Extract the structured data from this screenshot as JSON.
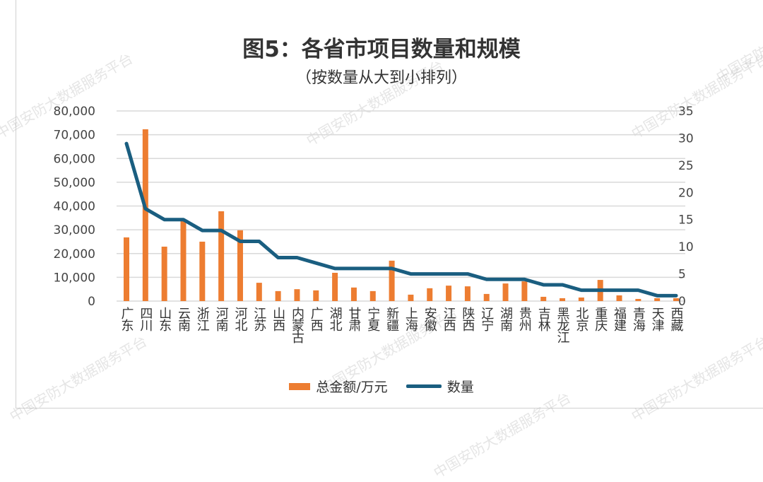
{
  "watermark": "中国安防大数据服务平台",
  "colors": {
    "bar": "#ED7D31",
    "line": "#1A5E80",
    "grid": "#d9d9d9"
  },
  "chart_data": {
    "type": "bar+line",
    "title": "图5：各省市项目数量和规模",
    "subtitle": "（按数量从大到小排列）",
    "categories": [
      "广东",
      "四川",
      "山东",
      "云南",
      "浙江",
      "河南",
      "河北",
      "江苏",
      "山西",
      "内蒙古",
      "广西",
      "湖北",
      "甘肃",
      "宁夏",
      "新疆",
      "上海",
      "安徽",
      "江西",
      "陕西",
      "辽宁",
      "湖南",
      "贵州",
      "吉林",
      "黑龙江",
      "北京",
      "重庆",
      "福建",
      "青海",
      "天津",
      "西藏"
    ],
    "series": [
      {
        "name": "总金额/万元",
        "type": "bar",
        "axis": "left",
        "values": [
          26800,
          72300,
          22900,
          33900,
          25000,
          37800,
          29800,
          7700,
          4200,
          5000,
          4500,
          11900,
          5700,
          4200,
          17000,
          2700,
          5400,
          6500,
          6200,
          3000,
          7400,
          8300,
          1800,
          1200,
          1500,
          8900,
          2400,
          900,
          1200,
          1200
        ]
      },
      {
        "name": "数量",
        "type": "line",
        "axis": "right",
        "values": [
          29,
          17,
          15,
          15,
          13,
          13,
          11,
          11,
          8,
          8,
          7,
          6,
          6,
          6,
          6,
          5,
          5,
          5,
          5,
          4,
          4,
          4,
          3,
          3,
          2,
          2,
          2,
          2,
          1,
          1
        ]
      }
    ],
    "y_left": {
      "range": [
        0,
        80000
      ],
      "ticks": [
        "0",
        "10,000",
        "20,000",
        "30,000",
        "40,000",
        "50,000",
        "60,000",
        "70,000",
        "80,000"
      ]
    },
    "y_right": {
      "range": [
        0,
        35
      ],
      "ticks": [
        "0",
        "5",
        "10",
        "15",
        "20",
        "25",
        "30",
        "35"
      ]
    },
    "grid": true,
    "legend": "bottom"
  }
}
